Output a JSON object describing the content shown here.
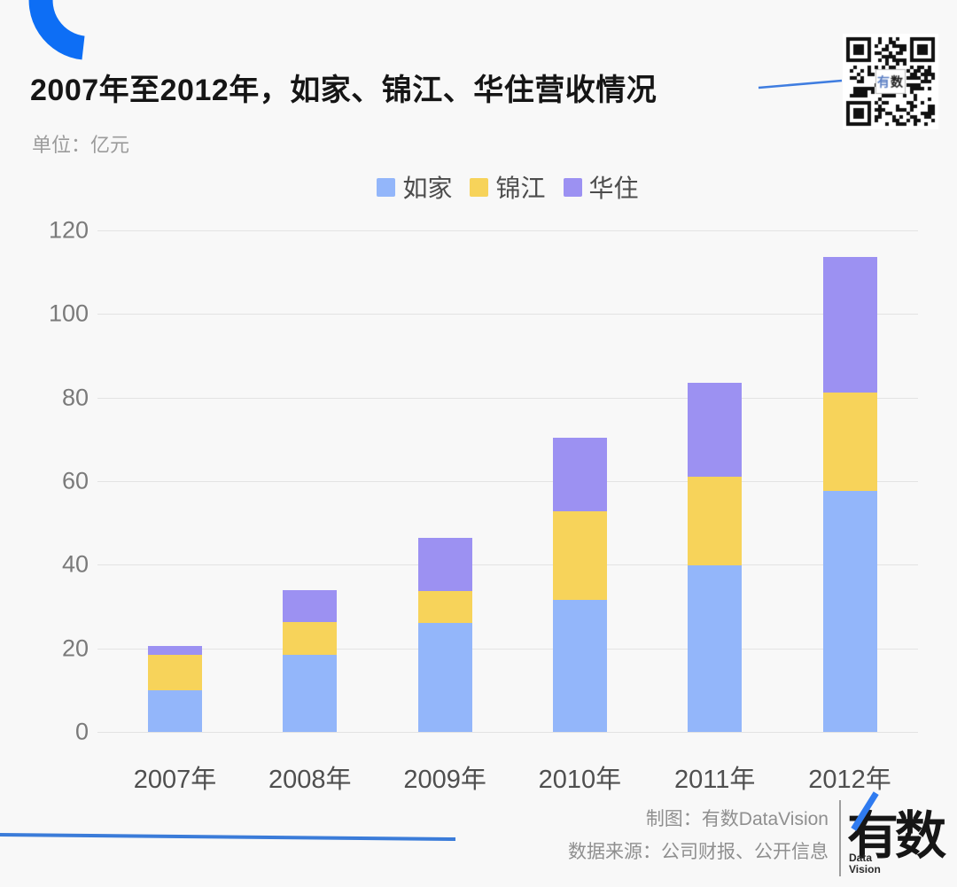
{
  "header": {
    "title": "2007年至2012年，如家、锦江、华住营收情况",
    "subtitle": "单位：亿元"
  },
  "qr": {
    "label": "有数"
  },
  "chart_data": {
    "type": "bar",
    "stacked": true,
    "title": "2007年至2012年，如家、锦江、华住营收情况",
    "unit": "亿元",
    "categories": [
      "2007年",
      "2008年",
      "2009年",
      "2010年",
      "2011年",
      "2012年"
    ],
    "series": [
      {
        "name": "如家",
        "color": "#93b6fa",
        "values": [
          10.0,
          18.5,
          26.0,
          31.5,
          39.8,
          57.7
        ]
      },
      {
        "name": "锦江",
        "color": "#f7d35a",
        "values": [
          8.5,
          7.8,
          7.7,
          21.3,
          21.3,
          23.5
        ]
      },
      {
        "name": "华住",
        "color": "#9c91f2",
        "values": [
          2.1,
          7.7,
          12.7,
          17.6,
          22.5,
          32.5
        ]
      }
    ],
    "ylim": [
      0,
      120
    ],
    "yticks": [
      0,
      20,
      40,
      60,
      80,
      100,
      120
    ],
    "grid": true,
    "legend_position": "top"
  },
  "footer": {
    "credit": "制图：有数DataVision",
    "source": "数据来源：公司财报、公开信息",
    "logo_text": "有数",
    "logo_sub_line1": "Data",
    "logo_sub_line2": "Vision"
  },
  "colors": {
    "accent_blue": "#0d6ef5",
    "pointer_blue": "#3f7de0",
    "footer_line_blue": "#3b7cd9"
  }
}
